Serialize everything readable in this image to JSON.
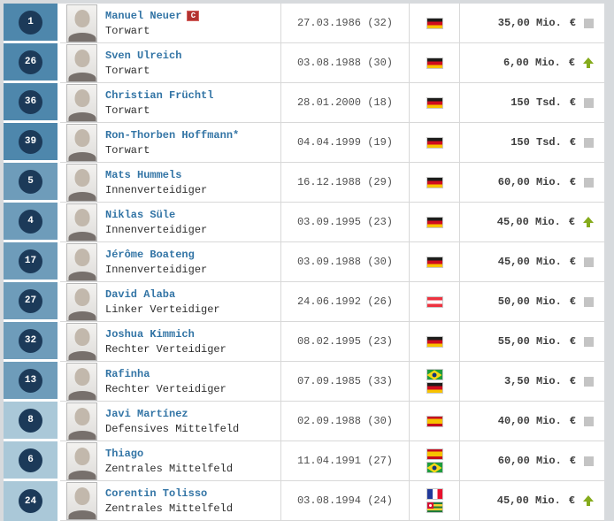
{
  "page": {
    "background": "#d7dadd"
  },
  "legend": {
    "captain_badge": "C"
  },
  "colors": {
    "position_groups": {
      "goalkeeper": "#4e87ac",
      "defence": "#6e9cba",
      "midfield": "#aac8d8"
    },
    "number_badge": "#1c3a59",
    "player_link": "#3274a5",
    "trend_up": "#85ab1c",
    "trend_steady": "#c4c4c4"
  },
  "players": [
    {
      "number": "1",
      "name": "Manuel Neuer",
      "captain": true,
      "position": "Torwart",
      "group": "goalkeeper",
      "birthdate": "27.03.1986 (32)",
      "nationalities": [
        "germany"
      ],
      "market_value": "35,00 Mio.",
      "currency": "€",
      "trend": "steady"
    },
    {
      "number": "26",
      "name": "Sven Ulreich",
      "captain": false,
      "position": "Torwart",
      "group": "goalkeeper",
      "birthdate": "03.08.1988 (30)",
      "nationalities": [
        "germany"
      ],
      "market_value": "6,00 Mio.",
      "currency": "€",
      "trend": "up"
    },
    {
      "number": "36",
      "name": "Christian Früchtl",
      "captain": false,
      "position": "Torwart",
      "group": "goalkeeper",
      "birthdate": "28.01.2000 (18)",
      "nationalities": [
        "germany"
      ],
      "market_value": "150 Tsd.",
      "currency": "€",
      "trend": "steady"
    },
    {
      "number": "39",
      "name": "Ron-Thorben Hoffmann*",
      "captain": false,
      "position": "Torwart",
      "group": "goalkeeper",
      "birthdate": "04.04.1999 (19)",
      "nationalities": [
        "germany"
      ],
      "market_value": "150 Tsd.",
      "currency": "€",
      "trend": "steady"
    },
    {
      "number": "5",
      "name": "Mats Hummels",
      "captain": false,
      "position": "Innenverteidiger",
      "group": "defence",
      "birthdate": "16.12.1988 (29)",
      "nationalities": [
        "germany"
      ],
      "market_value": "60,00 Mio.",
      "currency": "€",
      "trend": "steady"
    },
    {
      "number": "4",
      "name": "Niklas Süle",
      "captain": false,
      "position": "Innenverteidiger",
      "group": "defence",
      "birthdate": "03.09.1995 (23)",
      "nationalities": [
        "germany"
      ],
      "market_value": "45,00 Mio.",
      "currency": "€",
      "trend": "up"
    },
    {
      "number": "17",
      "name": "Jérôme Boateng",
      "captain": false,
      "position": "Innenverteidiger",
      "group": "defence",
      "birthdate": "03.09.1988 (30)",
      "nationalities": [
        "germany"
      ],
      "market_value": "45,00 Mio.",
      "currency": "€",
      "trend": "steady"
    },
    {
      "number": "27",
      "name": "David Alaba",
      "captain": false,
      "position": "Linker Verteidiger",
      "group": "defence",
      "birthdate": "24.06.1992 (26)",
      "nationalities": [
        "austria"
      ],
      "market_value": "50,00 Mio.",
      "currency": "€",
      "trend": "steady"
    },
    {
      "number": "32",
      "name": "Joshua Kimmich",
      "captain": false,
      "position": "Rechter Verteidiger",
      "group": "defence",
      "birthdate": "08.02.1995 (23)",
      "nationalities": [
        "germany"
      ],
      "market_value": "55,00 Mio.",
      "currency": "€",
      "trend": "steady"
    },
    {
      "number": "13",
      "name": "Rafinha",
      "captain": false,
      "position": "Rechter Verteidiger",
      "group": "defence",
      "birthdate": "07.09.1985 (33)",
      "nationalities": [
        "brazil",
        "germany"
      ],
      "market_value": "3,50 Mio.",
      "currency": "€",
      "trend": "steady"
    },
    {
      "number": "8",
      "name": "Javi Martínez",
      "captain": false,
      "position": "Defensives Mittelfeld",
      "group": "midfield",
      "birthdate": "02.09.1988 (30)",
      "nationalities": [
        "spain"
      ],
      "market_value": "40,00 Mio.",
      "currency": "€",
      "trend": "steady"
    },
    {
      "number": "6",
      "name": "Thiago",
      "captain": false,
      "position": "Zentrales Mittelfeld",
      "group": "midfield",
      "birthdate": "11.04.1991 (27)",
      "nationalities": [
        "spain",
        "brazil"
      ],
      "market_value": "60,00 Mio.",
      "currency": "€",
      "trend": "steady"
    },
    {
      "number": "24",
      "name": "Corentin Tolisso",
      "captain": false,
      "position": "Zentrales Mittelfeld",
      "group": "midfield",
      "birthdate": "03.08.1994 (24)",
      "nationalities": [
        "france",
        "togo"
      ],
      "market_value": "45,00 Mio.",
      "currency": "€",
      "trend": "up"
    }
  ]
}
